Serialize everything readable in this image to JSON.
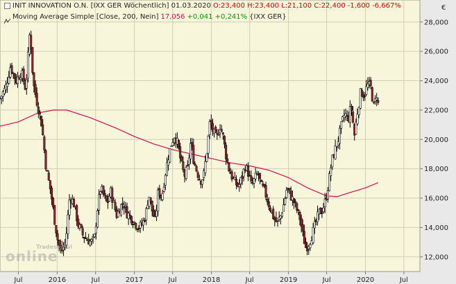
{
  "legend": {
    "line1": {
      "name": "INIT INNOVATION O.N. [IXX GER  Wöchentlich] 01.03.2020",
      "ohlc": "O:23,400 H:23,400 L:21,100 C:22,400",
      "change": "-1,600 -6,667%"
    },
    "line2": {
      "name": "Moving Average Simple [Close, 200, Nein]",
      "value": "17,056",
      "change": "+0,041 +0,241%",
      "market": "{IXX GER}"
    }
  },
  "currency_label": "€",
  "watermark": {
    "top": "Tradesignal",
    "main": "online"
  },
  "colors": {
    "plot_bg": "#f7f6da",
    "up_candle": "#ffffff",
    "down_candle": "#a0262a",
    "wick": "#000000",
    "ma_line": "#d60a52",
    "grid": "#cfcfb4",
    "negative": "#d40000",
    "positive": "#009a00",
    "ma_value": "#d60a52"
  },
  "chart_data": {
    "type": "candlestick",
    "title": "INIT INNOVATION O.N. [IXX GER  Wöchentlich] 01.03.2020",
    "ylim": [
      11000,
      29500
    ],
    "y_ticks": [
      12000,
      14000,
      16000,
      18000,
      20000,
      22000,
      24000,
      26000,
      28000
    ],
    "y_tick_labels": [
      "12,000",
      "14,000",
      "16,000",
      "18,000",
      "20,000",
      "22,000",
      "24,000",
      "26,000",
      "28,000"
    ],
    "x_range": [
      "2015-04-05",
      "2020-09-15"
    ],
    "x_ticks": [
      "2015-07-01",
      "2016-01-01",
      "2016-07-01",
      "2017-01-01",
      "2017-07-01",
      "2018-01-01",
      "2018-07-01",
      "2019-01-01",
      "2019-07-01",
      "2020-01-01",
      "2020-07-01"
    ],
    "x_tick_labels": [
      "Jul",
      "2016",
      "Jul",
      "2017",
      "Jul",
      "2018",
      "Jul",
      "2019",
      "Jul",
      "2020",
      "Jul"
    ],
    "grid": true,
    "close_path": [
      [
        "2015-04-05",
        22800
      ],
      [
        "2015-05-01",
        23500
      ],
      [
        "2015-05-25",
        25000
      ],
      [
        "2015-06-20",
        24000
      ],
      [
        "2015-07-15",
        24600
      ],
      [
        "2015-08-05",
        23400
      ],
      [
        "2015-08-25",
        27500
      ],
      [
        "2015-09-10",
        23800
      ],
      [
        "2015-10-01",
        22300
      ],
      [
        "2015-10-20",
        21000
      ],
      [
        "2015-11-10",
        18000
      ],
      [
        "2015-12-01",
        16500
      ],
      [
        "2015-12-20",
        14500
      ],
      [
        "2016-01-05",
        13000
      ],
      [
        "2016-01-20",
        12300
      ],
      [
        "2016-02-10",
        13000
      ],
      [
        "2016-03-01",
        16200
      ],
      [
        "2016-03-20",
        15600
      ],
      [
        "2016-04-10",
        14200
      ],
      [
        "2016-05-01",
        13500
      ],
      [
        "2016-05-20",
        13200
      ],
      [
        "2016-06-10",
        13000
      ],
      [
        "2016-06-25",
        13200
      ],
      [
        "2016-07-10",
        15300
      ],
      [
        "2016-07-25",
        16700
      ],
      [
        "2016-08-10",
        16100
      ],
      [
        "2016-08-25",
        15600
      ],
      [
        "2016-09-10",
        16500
      ],
      [
        "2016-09-25",
        15600
      ],
      [
        "2016-10-10",
        14800
      ],
      [
        "2016-10-25",
        15400
      ],
      [
        "2016-11-10",
        15700
      ],
      [
        "2016-11-25",
        15000
      ],
      [
        "2016-12-10",
        14800
      ],
      [
        "2016-12-25",
        14500
      ],
      [
        "2017-01-10",
        14200
      ],
      [
        "2017-01-25",
        14000
      ],
      [
        "2017-02-10",
        14300
      ],
      [
        "2017-02-25",
        15000
      ],
      [
        "2017-03-10",
        16300
      ],
      [
        "2017-03-25",
        15200
      ],
      [
        "2017-04-10",
        14400
      ],
      [
        "2017-04-25",
        16600
      ],
      [
        "2017-05-10",
        16000
      ],
      [
        "2017-05-25",
        17500
      ],
      [
        "2017-06-10",
        18800
      ],
      [
        "2017-06-25",
        19700
      ],
      [
        "2017-07-10",
        20300
      ],
      [
        "2017-07-25",
        19700
      ],
      [
        "2017-08-10",
        18400
      ],
      [
        "2017-08-25",
        17500
      ],
      [
        "2017-09-10",
        18000
      ],
      [
        "2017-09-25",
        19800
      ],
      [
        "2017-10-10",
        18500
      ],
      [
        "2017-10-25",
        17800
      ],
      [
        "2017-11-10",
        17200
      ],
      [
        "2017-11-25",
        17500
      ],
      [
        "2017-12-10",
        19200
      ],
      [
        "2017-12-25",
        21200
      ],
      [
        "2018-01-10",
        20500
      ],
      [
        "2018-01-25",
        20000
      ],
      [
        "2018-02-10",
        21000
      ],
      [
        "2018-02-25",
        20200
      ],
      [
        "2018-03-10",
        19000
      ],
      [
        "2018-03-25",
        18000
      ],
      [
        "2018-04-10",
        17400
      ],
      [
        "2018-04-25",
        17000
      ],
      [
        "2018-05-10",
        16800
      ],
      [
        "2018-05-25",
        17400
      ],
      [
        "2018-06-10",
        18200
      ],
      [
        "2018-06-25",
        17700
      ],
      [
        "2018-07-10",
        16800
      ],
      [
        "2018-07-25",
        17300
      ],
      [
        "2018-08-10",
        17700
      ],
      [
        "2018-08-25",
        16800
      ],
      [
        "2018-09-10",
        16500
      ],
      [
        "2018-09-25",
        15800
      ],
      [
        "2018-10-10",
        15200
      ],
      [
        "2018-10-25",
        14600
      ],
      [
        "2018-11-10",
        14300
      ],
      [
        "2018-11-25",
        14800
      ],
      [
        "2018-12-10",
        15600
      ],
      [
        "2018-12-25",
        16700
      ],
      [
        "2019-01-10",
        16200
      ],
      [
        "2019-01-25",
        15800
      ],
      [
        "2019-02-10",
        15200
      ],
      [
        "2019-02-25",
        14600
      ],
      [
        "2019-03-10",
        13500
      ],
      [
        "2019-03-25",
        12600
      ],
      [
        "2019-04-10",
        13000
      ],
      [
        "2019-04-25",
        13600
      ],
      [
        "2019-05-10",
        14300
      ],
      [
        "2019-05-25",
        15000
      ],
      [
        "2019-06-10",
        15200
      ],
      [
        "2019-06-25",
        15800
      ],
      [
        "2019-07-10",
        17000
      ],
      [
        "2019-07-25",
        18500
      ],
      [
        "2019-08-10",
        19300
      ],
      [
        "2019-08-25",
        20000
      ],
      [
        "2019-09-10",
        21000
      ],
      [
        "2019-09-25",
        21800
      ],
      [
        "2019-10-10",
        21300
      ],
      [
        "2019-10-25",
        22300
      ],
      [
        "2019-11-10",
        20300
      ],
      [
        "2019-11-25",
        22000
      ],
      [
        "2019-12-10",
        23300
      ],
      [
        "2019-12-25",
        23000
      ],
      [
        "2020-01-10",
        23700
      ],
      [
        "2020-01-25",
        23600
      ],
      [
        "2020-02-10",
        22200
      ],
      [
        "2020-02-25",
        23200
      ],
      [
        "2020-03-01",
        22400
      ]
    ],
    "series": [
      {
        "name": "Moving Average Simple [Close, 200, Nein]",
        "type": "line",
        "points": [
          [
            "2015-04-05",
            20900
          ],
          [
            "2015-07-01",
            21200
          ],
          [
            "2015-10-01",
            21800
          ],
          [
            "2015-12-15",
            22000
          ],
          [
            "2016-02-15",
            22000
          ],
          [
            "2016-06-01",
            21500
          ],
          [
            "2016-10-01",
            20800
          ],
          [
            "2017-01-01",
            20200
          ],
          [
            "2017-04-01",
            19700
          ],
          [
            "2017-07-01",
            19300
          ],
          [
            "2017-10-01",
            19000
          ],
          [
            "2018-01-01",
            18700
          ],
          [
            "2018-04-01",
            18400
          ],
          [
            "2018-07-01",
            18200
          ],
          [
            "2018-10-01",
            17900
          ],
          [
            "2019-01-01",
            17400
          ],
          [
            "2019-04-01",
            16700
          ],
          [
            "2019-07-01",
            16150
          ],
          [
            "2019-08-20",
            16100
          ],
          [
            "2019-10-01",
            16300
          ],
          [
            "2020-01-01",
            16700
          ],
          [
            "2020-03-01",
            17056
          ]
        ]
      }
    ]
  }
}
